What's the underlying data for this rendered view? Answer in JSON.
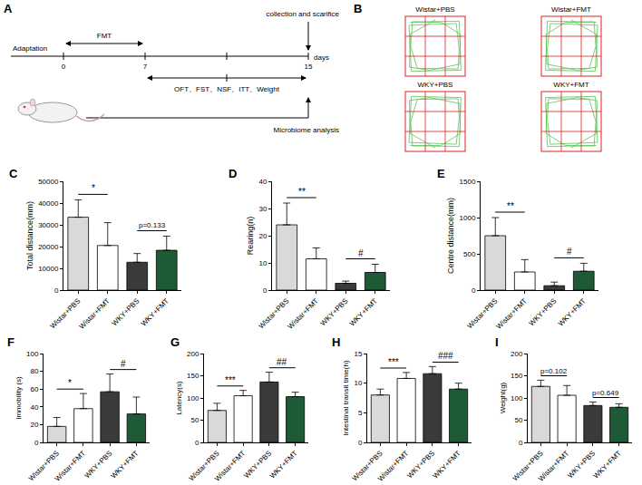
{
  "diagram": {
    "label": "A",
    "phases": [
      "Adaptation",
      "FMT"
    ],
    "days": [
      0,
      7,
      15
    ],
    "unit": "days",
    "tests": "OFT、FST、NSF、ITT、Weight",
    "top_note": "collection and scarifice",
    "bottom_note": "Microbiome analysis"
  },
  "tracks": {
    "label": "B",
    "groups": [
      "Wistar+PBS",
      "Wistar+FMT",
      "WKY+PBS",
      "WKY+FMT"
    ]
  },
  "chart_data": [
    {
      "type": "bar",
      "label": "C",
      "ylabel": "Total distance(mm)",
      "categories": [
        "Wistar+PBS",
        "Wistar+FMT",
        "WKY+PBS",
        "WKY+FMT"
      ],
      "values": [
        33500,
        20500,
        12800,
        18300
      ],
      "errors": [
        8000,
        10500,
        4000,
        6500
      ],
      "colors": [
        "#d9d9d9",
        "#ffffff",
        "#3a3a3a",
        "#1e5a36"
      ],
      "ylim": [
        0,
        50000
      ],
      "yticks": [
        0,
        10000,
        20000,
        30000,
        40000,
        50000
      ],
      "comparisons": [
        {
          "groups": [
            0,
            1
          ],
          "label": "*"
        },
        {
          "groups": [
            2,
            3
          ],
          "label": "p=0.133"
        }
      ]
    },
    {
      "type": "bar",
      "label": "D",
      "ylabel": "Rearing(n)",
      "categories": [
        "Wistar+PBS",
        "Wistar+FMT",
        "WKY+PBS",
        "WKY+FMT"
      ],
      "values": [
        24,
        11.5,
        2.5,
        6.5
      ],
      "errors": [
        8,
        4,
        0.8,
        3
      ],
      "colors": [
        "#d9d9d9",
        "#ffffff",
        "#3a3a3a",
        "#1e5a36"
      ],
      "ylim": [
        0,
        40
      ],
      "yticks": [
        0,
        10,
        20,
        30,
        40
      ],
      "comparisons": [
        {
          "groups": [
            0,
            1
          ],
          "label": "**"
        },
        {
          "groups": [
            2,
            3
          ],
          "label": "#"
        }
      ]
    },
    {
      "type": "bar",
      "label": "E",
      "ylabel": "Centre distance(mm)",
      "categories": [
        "Wistar+PBS",
        "Wistar+FMT",
        "WKY+PBS",
        "WKY+FMT"
      ],
      "values": [
        750,
        250,
        60,
        260
      ],
      "errors": [
        250,
        170,
        50,
        110
      ],
      "colors": [
        "#d9d9d9",
        "#ffffff",
        "#3a3a3a",
        "#1e5a36"
      ],
      "ylim": [
        0,
        1500
      ],
      "yticks": [
        0,
        500,
        1000,
        1500
      ],
      "comparisons": [
        {
          "groups": [
            0,
            1
          ],
          "label": "**"
        },
        {
          "groups": [
            2,
            3
          ],
          "label": "#"
        }
      ]
    },
    {
      "type": "bar",
      "label": "F",
      "ylabel": "Immobility (s)",
      "categories": [
        "Wistar+PBS",
        "Wistar+FMT",
        "WKY+PBS",
        "WKY+FMT"
      ],
      "values": [
        18,
        38,
        57,
        32
      ],
      "errors": [
        10,
        17,
        20,
        19
      ],
      "colors": [
        "#d9d9d9",
        "#ffffff",
        "#3a3a3a",
        "#1e5a36"
      ],
      "ylim": [
        0,
        100
      ],
      "yticks": [
        0,
        20,
        40,
        60,
        80,
        100
      ],
      "comparisons": [
        {
          "groups": [
            0,
            1
          ],
          "label": "*"
        },
        {
          "groups": [
            2,
            3
          ],
          "label": "#"
        }
      ]
    },
    {
      "type": "bar",
      "label": "G",
      "ylabel": "Latency(s)",
      "categories": [
        "Wistar+PBS",
        "Wistar+FMT",
        "WKY+PBS",
        "WKY+FMT"
      ],
      "values": [
        72,
        105,
        136,
        103
      ],
      "errors": [
        16,
        12,
        22,
        10
      ],
      "colors": [
        "#d9d9d9",
        "#ffffff",
        "#3a3a3a",
        "#1e5a36"
      ],
      "ylim": [
        0,
        200
      ],
      "yticks": [
        0,
        50,
        100,
        150,
        200
      ],
      "comparisons": [
        {
          "groups": [
            0,
            1
          ],
          "label": "***"
        },
        {
          "groups": [
            2,
            3
          ],
          "label": "##"
        }
      ]
    },
    {
      "type": "bar",
      "label": "H",
      "ylabel": "Intestinal transit time(h)",
      "categories": [
        "Wistar+PBS",
        "Wistar+FMT",
        "WKY+PBS",
        "WKY+FMT"
      ],
      "values": [
        8,
        10.8,
        11.6,
        9
      ],
      "errors": [
        1,
        1,
        1.2,
        1
      ],
      "colors": [
        "#d9d9d9",
        "#ffffff",
        "#3a3a3a",
        "#1e5a36"
      ],
      "ylim": [
        0,
        15
      ],
      "yticks": [
        0,
        5,
        10,
        15
      ],
      "comparisons": [
        {
          "groups": [
            0,
            1
          ],
          "label": "***"
        },
        {
          "groups": [
            2,
            3
          ],
          "label": "###"
        }
      ]
    },
    {
      "type": "bar",
      "label": "I",
      "ylabel": "Weight(g)",
      "categories": [
        "Wistar+PBS",
        "Wistar+FMT",
        "WKY+PBS",
        "WKY+FMT"
      ],
      "values": [
        126,
        106,
        83,
        79
      ],
      "errors": [
        14,
        22,
        8,
        8
      ],
      "colors": [
        "#d9d9d9",
        "#ffffff",
        "#3a3a3a",
        "#1e5a36"
      ],
      "ylim": [
        0,
        200
      ],
      "yticks": [
        0,
        50,
        100,
        150,
        200
      ],
      "comparisons": [
        {
          "groups": [
            0,
            1
          ],
          "label": "p=0.102"
        },
        {
          "groups": [
            2,
            3
          ],
          "label": "p=0.649"
        }
      ]
    }
  ]
}
